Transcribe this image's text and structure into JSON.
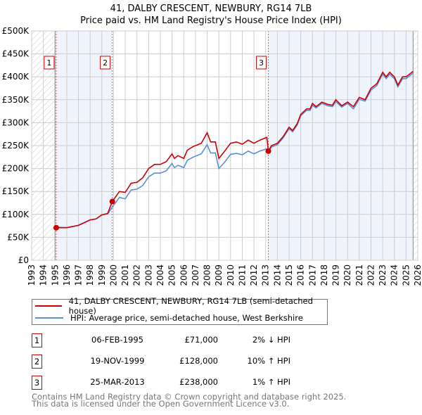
{
  "chart_data": {
    "type": "line",
    "title": "41, DALBY CRESCENT, NEWBURY, RG14 7LB",
    "subtitle": "Price paid vs. HM Land Registry's House Price Index (HPI)",
    "xlim": [
      1993,
      2026
    ],
    "ylim": [
      0,
      500000
    ],
    "y_ticks": [
      0,
      50000,
      100000,
      150000,
      200000,
      250000,
      300000,
      350000,
      400000,
      450000,
      500000
    ],
    "y_tick_labels": [
      "£0",
      "£50K",
      "£100K",
      "£150K",
      "£200K",
      "£250K",
      "£300K",
      "£350K",
      "£400K",
      "£450K",
      "£500K"
    ],
    "x_ticks": [
      1993,
      1994,
      1995,
      1996,
      1997,
      1998,
      1999,
      2000,
      2001,
      2002,
      2003,
      2004,
      2005,
      2006,
      2007,
      2008,
      2009,
      2010,
      2011,
      2012,
      2013,
      2014,
      2015,
      2016,
      2017,
      2018,
      2019,
      2020,
      2021,
      2022,
      2023,
      2024,
      2025,
      2026
    ],
    "grid": true,
    "colors": {
      "property": "#cc0000",
      "hpi": "#5b8fd4",
      "shade": "#eef3fc"
    },
    "series": [
      {
        "name": "41, DALBY CRESCENT, NEWBURY, RG14 7LB (semi-detached house)",
        "color": "#cc0000",
        "x": [
          1995.1,
          1996,
          1997,
          1998,
          1998.5,
          1999,
          1999.5,
          1999.89,
          2000.5,
          2001,
          2001.5,
          2002,
          2002.5,
          2003,
          2003.5,
          2004,
          2004.5,
          2005,
          2005.2,
          2005.5,
          2006,
          2006.3,
          2006.8,
          2007.5,
          2008,
          2008.3,
          2008.7,
          2009,
          2009.5,
          2010,
          2010.5,
          2011,
          2011.5,
          2012,
          2012.5,
          2013.1,
          2013.23,
          2013.5,
          2014,
          2014.5,
          2015,
          2015.3,
          2015.7,
          2016,
          2016.5,
          2016.8,
          2017,
          2017.3,
          2017.8,
          2018.3,
          2018.7,
          2019,
          2019.5,
          2020,
          2020.5,
          2021,
          2021.5,
          2022,
          2022.5,
          2023,
          2023.3,
          2023.6,
          2024,
          2024.3,
          2024.7,
          2025,
          2025.5,
          2025.6
        ],
        "y": [
          71000,
          71000,
          76000,
          88000,
          90000,
          99000,
          102000,
          128000,
          150000,
          148000,
          168000,
          170000,
          180000,
          200000,
          209000,
          209000,
          215000,
          232000,
          222000,
          228000,
          222000,
          240000,
          248000,
          255000,
          278000,
          258000,
          258000,
          222000,
          238000,
          255000,
          258000,
          253000,
          262000,
          255000,
          262000,
          268000,
          238000,
          250000,
          255000,
          270000,
          290000,
          283000,
          298000,
          318000,
          330000,
          330000,
          342000,
          335000,
          345000,
          340000,
          338000,
          350000,
          337000,
          345000,
          335000,
          355000,
          350000,
          375000,
          385000,
          410000,
          400000,
          410000,
          400000,
          382000,
          400000,
          400000,
          410000,
          412000
        ]
      },
      {
        "name": "HPI: Average price, semi-detached house, West Berkshire",
        "color": "#5b8fd4",
        "x": [
          1995.1,
          1996,
          1997,
          1998,
          1998.5,
          1999,
          1999.5,
          1999.89,
          2000.5,
          2001,
          2001.5,
          2002,
          2002.5,
          2003,
          2003.5,
          2004,
          2004.5,
          2005,
          2005.2,
          2005.5,
          2006,
          2006.3,
          2006.8,
          2007.5,
          2008,
          2008.3,
          2008.7,
          2009,
          2009.5,
          2010,
          2010.5,
          2011,
          2011.5,
          2012,
          2012.5,
          2013.1,
          2013.23,
          2013.5,
          2014,
          2014.5,
          2015,
          2015.3,
          2015.7,
          2016,
          2016.5,
          2016.8,
          2017,
          2017.3,
          2017.8,
          2018.3,
          2018.7,
          2019,
          2019.5,
          2020,
          2020.5,
          2021,
          2021.5,
          2022,
          2022.5,
          2023,
          2023.3,
          2023.6,
          2024,
          2024.3,
          2024.7,
          2025,
          2025.5,
          2025.6
        ],
        "y": [
          72000,
          71000,
          76000,
          88000,
          90000,
          99000,
          101000,
          116000,
          137000,
          134000,
          153000,
          155000,
          163000,
          182000,
          190000,
          190000,
          195000,
          211000,
          202000,
          207000,
          202000,
          218000,
          225000,
          232000,
          252000,
          234000,
          234000,
          200000,
          214000,
          231000,
          233000,
          230000,
          238000,
          232000,
          238000,
          243000,
          236000,
          247000,
          252000,
          267000,
          287000,
          280000,
          295000,
          315000,
          327000,
          327000,
          338000,
          332000,
          342000,
          337000,
          335000,
          346000,
          334000,
          342000,
          330000,
          351000,
          347000,
          371000,
          381000,
          406000,
          396000,
          406000,
          396000,
          378000,
          396000,
          396000,
          406000,
          408000
        ]
      }
    ],
    "sales": [
      {
        "label": "1",
        "x": 1995.1,
        "y": 71000
      },
      {
        "label": "2",
        "x": 1999.89,
        "y": 128000
      },
      {
        "label": "3",
        "x": 2013.23,
        "y": 238000
      }
    ],
    "shaded_ranges": [
      [
        1995.1,
        1999.89
      ],
      [
        2013.23,
        2025.6
      ]
    ],
    "hatched_ranges": [
      [
        1993,
        1995.0
      ],
      [
        2025.6,
        2026
      ]
    ]
  },
  "legend": {
    "property": "41, DALBY CRESCENT, NEWBURY, RG14 7LB (semi-detached house)",
    "hpi": "HPI: Average price, semi-detached house, West Berkshire"
  },
  "transactions": [
    {
      "num": "1",
      "date": "06-FEB-1995",
      "price": "£71,000",
      "hpi": "2% ↓ HPI"
    },
    {
      "num": "2",
      "date": "19-NOV-1999",
      "price": "£128,000",
      "hpi": "10% ↑ HPI"
    },
    {
      "num": "3",
      "date": "25-MAR-2013",
      "price": "£238,000",
      "hpi": "1% ↑ HPI"
    }
  ],
  "footer": {
    "line1": "Contains HM Land Registry data © Crown copyright and database right 2025.",
    "line2": "This data is licensed under the Open Government Licence v3.0."
  }
}
